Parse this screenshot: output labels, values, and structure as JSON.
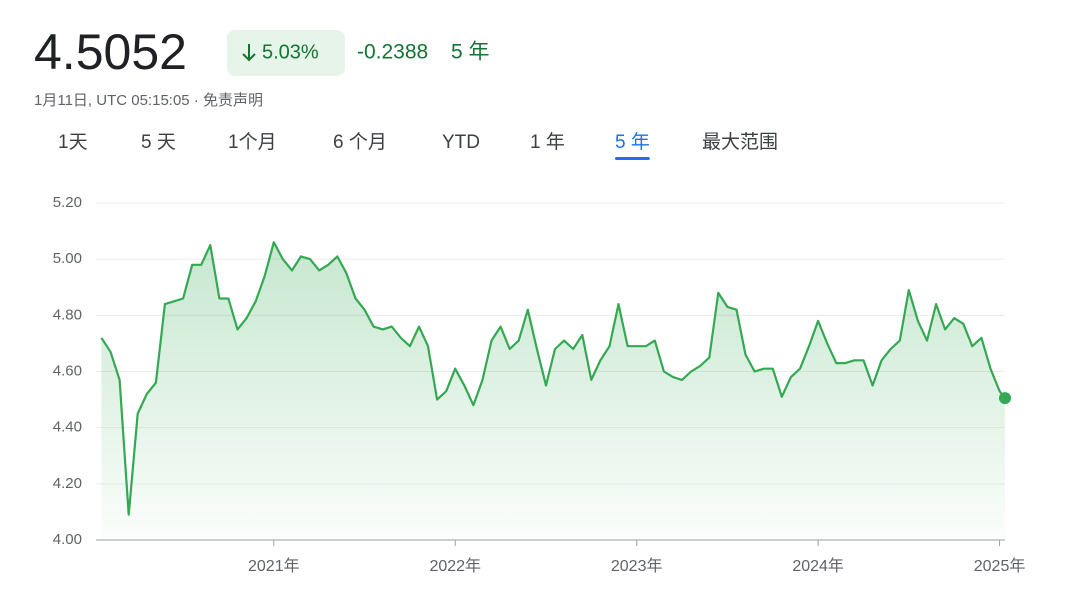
{
  "header": {
    "price": "4.5052",
    "change_pct": "5.03%",
    "change": "-0.2388",
    "period": "5 年",
    "timestamp": "1月11日, UTC 05:15:05 · 免责声明"
  },
  "tabs": {
    "items": [
      "1天",
      "5 天",
      "1个月",
      "6 个月",
      "YTD",
      "1 年",
      "5 年",
      "最大范围"
    ],
    "active": 6
  },
  "chart_data": {
    "type": "line",
    "x": [
      2020.05,
      2020.1,
      2020.15,
      2020.2,
      2020.25,
      2020.3,
      2020.35,
      2020.4,
      2020.45,
      2020.5,
      2020.55,
      2020.6,
      2020.65,
      2020.7,
      2020.75,
      2020.8,
      2020.85,
      2020.9,
      2020.95,
      2021.0,
      2021.05,
      2021.1,
      2021.15,
      2021.2,
      2021.25,
      2021.3,
      2021.35,
      2021.4,
      2021.45,
      2021.5,
      2021.55,
      2021.6,
      2021.65,
      2021.7,
      2021.75,
      2021.8,
      2021.85,
      2021.9,
      2021.95,
      2022.0,
      2022.05,
      2022.1,
      2022.15,
      2022.2,
      2022.25,
      2022.3,
      2022.35,
      2022.4,
      2022.45,
      2022.5,
      2022.55,
      2022.6,
      2022.65,
      2022.7,
      2022.75,
      2022.8,
      2022.85,
      2022.9,
      2022.95,
      2023.0,
      2023.05,
      2023.1,
      2023.15,
      2023.2,
      2023.25,
      2023.3,
      2023.35,
      2023.4,
      2023.45,
      2023.5,
      2023.55,
      2023.6,
      2023.65,
      2023.7,
      2023.75,
      2023.8,
      2023.85,
      2023.9,
      2023.95,
      2024.0,
      2024.05,
      2024.1,
      2024.15,
      2024.2,
      2024.25,
      2024.3,
      2024.35,
      2024.4,
      2024.45,
      2024.5,
      2024.55,
      2024.6,
      2024.65,
      2024.7,
      2024.75,
      2024.8,
      2024.85,
      2024.9,
      2024.95,
      2025.0,
      2025.03
    ],
    "series": [
      {
        "color": "#34a853",
        "values": [
          4.72,
          4.67,
          4.57,
          4.09,
          4.45,
          4.52,
          4.56,
          4.84,
          4.85,
          4.86,
          4.98,
          4.98,
          5.05,
          4.86,
          4.86,
          4.75,
          4.79,
          4.85,
          4.94,
          5.06,
          5.0,
          4.96,
          5.01,
          5.0,
          4.96,
          4.98,
          5.01,
          4.95,
          4.86,
          4.82,
          4.76,
          4.75,
          4.76,
          4.72,
          4.69,
          4.76,
          4.69,
          4.5,
          4.53,
          4.61,
          4.55,
          4.48,
          4.57,
          4.71,
          4.76,
          4.68,
          4.71,
          4.82,
          4.68,
          4.55,
          4.68,
          4.71,
          4.68,
          4.73,
          4.57,
          4.64,
          4.69,
          4.84,
          4.69,
          4.69,
          4.69,
          4.71,
          4.6,
          4.58,
          4.57,
          4.6,
          4.62,
          4.65,
          4.88,
          4.83,
          4.82,
          4.66,
          4.6,
          4.61,
          4.61,
          4.51,
          4.58,
          4.61,
          4.69,
          4.78,
          4.7,
          4.63,
          4.63,
          4.64,
          4.64,
          4.55,
          4.64,
          4.68,
          4.71,
          4.89,
          4.78,
          4.71,
          4.84,
          4.75,
          4.79,
          4.77,
          4.69,
          4.72,
          4.61,
          4.53,
          4.5052
        ]
      }
    ],
    "xlim": [
      2020.02,
      2025.03
    ],
    "xticks": [
      {
        "value": 2021,
        "label": "2021年"
      },
      {
        "value": 2022,
        "label": "2022年"
      },
      {
        "value": 2023,
        "label": "2023年"
      },
      {
        "value": 2024,
        "label": "2024年"
      },
      {
        "value": 2025,
        "label": "2025年"
      }
    ],
    "ylim": [
      4.0,
      5.2
    ],
    "yticks": [
      {
        "value": 4.0,
        "label": "4.00"
      },
      {
        "value": 4.2,
        "label": "4.20"
      },
      {
        "value": 4.4,
        "label": "4.40"
      },
      {
        "value": 4.6,
        "label": "4.60"
      },
      {
        "value": 4.8,
        "label": "4.80"
      },
      {
        "value": 5.0,
        "label": "5.00"
      },
      {
        "value": 5.2,
        "label": "5.20"
      }
    ],
    "grid": true
  }
}
